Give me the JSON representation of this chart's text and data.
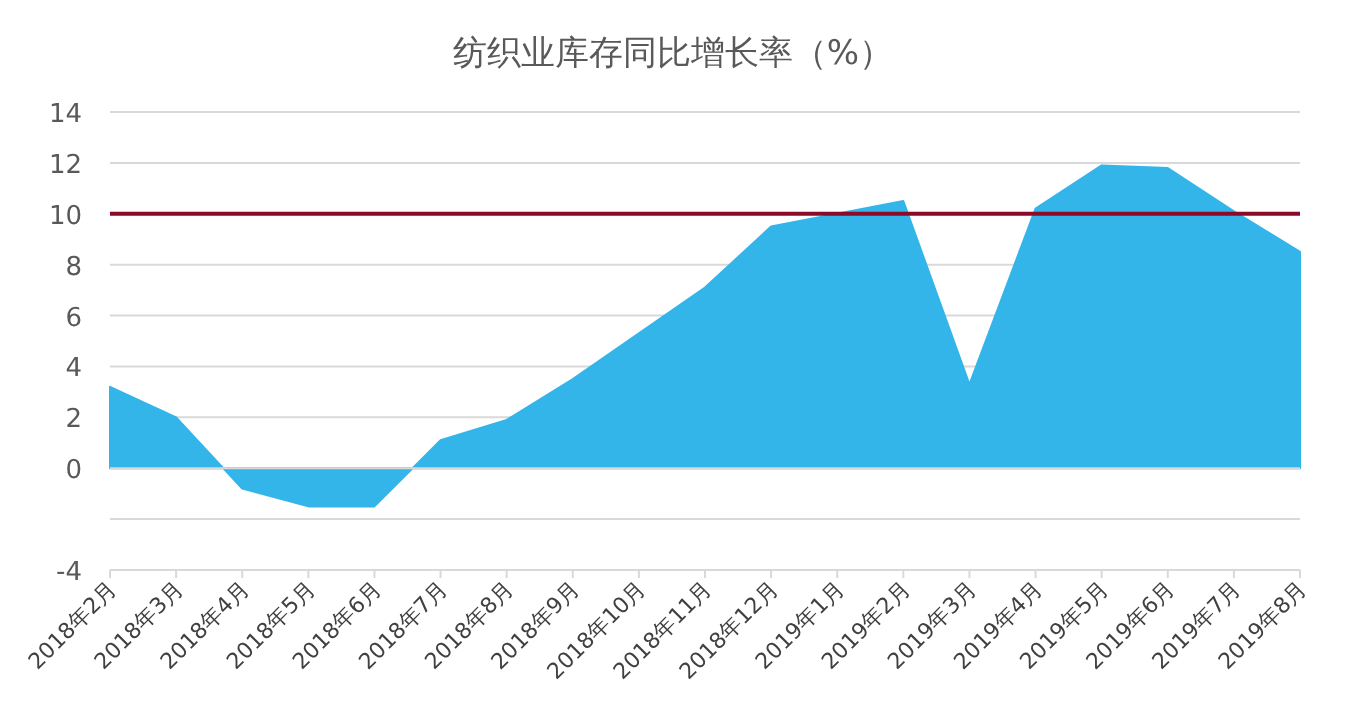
{
  "chart_data": {
    "type": "area",
    "title": "纺织业库存同比增长率（%）",
    "categories": [
      "2018年2月",
      "2018年3月",
      "2018年4月",
      "2018年5月",
      "2018年6月",
      "2018年7月",
      "2018年8月",
      "2018年9月",
      "2018年10月",
      "2018年11月",
      "2018年12月",
      "2019年1月",
      "2019年2月",
      "2019年3月",
      "2019年4月",
      "2019年5月",
      "2019年6月",
      "2019年7月",
      "2019年8月"
    ],
    "series": [
      {
        "color": "#33b5ea",
        "values": [
          3.2,
          2.0,
          -0.8,
          -1.5,
          -1.5,
          1.1,
          1.9,
          3.5,
          5.3,
          7.1,
          9.5,
          10.0,
          10.5,
          3.3,
          10.2,
          11.9,
          11.8,
          10.1,
          8.5
        ]
      }
    ],
    "ylim": [
      -4,
      14
    ],
    "yticks": [
      -4,
      {
        "value": -2,
        "label": null
      },
      0,
      2,
      4,
      6,
      8,
      10,
      12,
      14
    ],
    "grid": "y",
    "ref_lines": [
      {
        "axis": "y",
        "value": 10,
        "color": "#8b0a2a"
      }
    ]
  }
}
